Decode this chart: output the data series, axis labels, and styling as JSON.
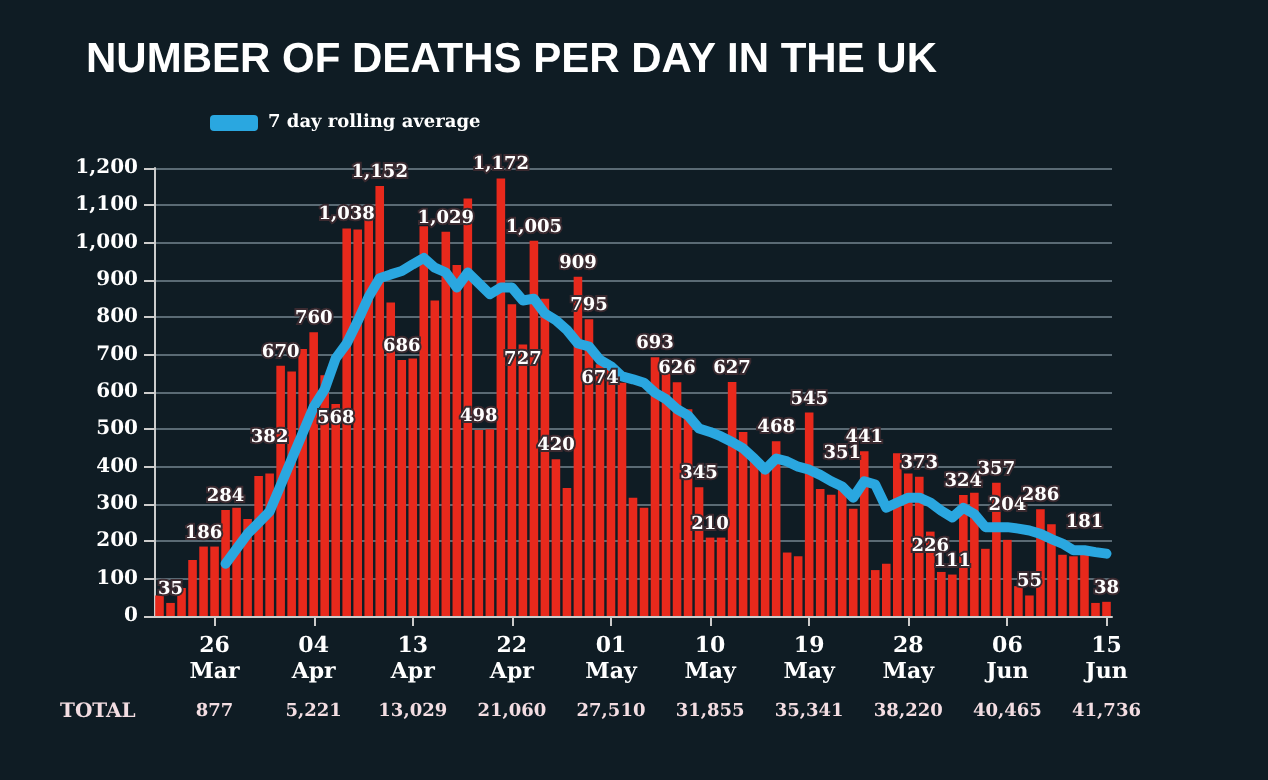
{
  "chart_data": {
    "type": "bar",
    "title": "NUMBER OF DEATHS PER DAY IN THE UK",
    "categories": [
      null,
      null,
      null,
      null,
      null,
      "26 Mar",
      null,
      null,
      null,
      null,
      null,
      null,
      null,
      null,
      "04 Apr",
      null,
      null,
      null,
      null,
      null,
      null,
      null,
      null,
      "13 Apr",
      null,
      null,
      null,
      null,
      null,
      null,
      null,
      null,
      "22 Apr",
      null,
      null,
      null,
      null,
      null,
      null,
      null,
      null,
      "01 May",
      null,
      null,
      null,
      null,
      null,
      null,
      null,
      null,
      "10 May",
      null,
      null,
      null,
      null,
      null,
      null,
      null,
      null,
      "19 May",
      null,
      null,
      null,
      null,
      null,
      null,
      null,
      null,
      "28 May",
      null,
      null,
      null,
      null,
      null,
      null,
      null,
      null,
      "06 Jun",
      null,
      null,
      null,
      null,
      null,
      null,
      null,
      null,
      "15 Jun"
    ],
    "series": [
      {
        "color": "#e8291c",
        "values": [
          55,
          35,
          75,
          150,
          186,
          186,
          284,
          290,
          260,
          375,
          382,
          670,
          655,
          715,
          760,
          645,
          568,
          1038,
          1035,
          1070,
          1152,
          840,
          686,
          690,
          1044,
          845,
          1029,
          940,
          1118,
          498,
          500,
          1172,
          835,
          727,
          1005,
          850,
          420,
          343,
          909,
          795,
          674,
          660,
          625,
          317,
          290,
          693,
          650,
          626,
          554,
          345,
          210,
          210,
          627,
          493,
          428,
          387,
          468,
          170,
          160,
          545,
          340,
          325,
          351,
          287,
          441,
          123,
          140,
          436,
          382,
          373,
          226,
          118,
          111,
          324,
          330,
          180,
          357,
          204,
          80,
          55,
          286,
          246,
          164,
          160,
          181,
          35,
          38
        ],
        "value_labels": [
          null,
          "35",
          null,
          null,
          "186",
          null,
          "284",
          null,
          null,
          null,
          "382",
          "670",
          null,
          null,
          "760",
          null,
          "568",
          "1,038",
          null,
          null,
          "1,152",
          null,
          "686",
          null,
          null,
          null,
          "1,029",
          null,
          null,
          "498",
          null,
          "1,172",
          null,
          "727",
          "1,005",
          null,
          "420",
          null,
          "909",
          "795",
          "674",
          null,
          null,
          null,
          null,
          "693",
          null,
          "626",
          null,
          "345",
          "210",
          null,
          "627",
          null,
          null,
          null,
          "468",
          null,
          null,
          "545",
          null,
          null,
          "351",
          null,
          "441",
          null,
          null,
          null,
          null,
          "373",
          "226",
          null,
          "111",
          "324",
          null,
          null,
          "357",
          "204",
          null,
          "55",
          "286",
          null,
          null,
          null,
          "181",
          null,
          "38"
        ]
      },
      {
        "type": "line",
        "name": "7 day rolling average",
        "color": "#2aa7e0",
        "values": [
          null,
          null,
          null,
          null,
          null,
          null,
          140,
          180,
          220,
          250,
          280,
          350,
          420,
          490,
          560,
          607,
          690,
          730,
          790,
          855,
          905,
          915,
          924,
          942,
          959,
          933,
          920,
          880,
          920,
          891,
          862,
          880,
          880,
          845,
          850,
          810,
          792,
          766,
          730,
          722,
          686,
          669,
          642,
          634,
          625,
          598,
          581,
          554,
          537,
          502,
          493,
          481,
          466,
          449,
          422,
          392,
          422,
          414,
          400,
          392,
          378,
          361,
          347,
          317,
          361,
          352,
          290,
          304,
          317,
          317,
          304,
          282,
          264,
          290,
          273,
          238,
          238,
          238,
          234,
          229,
          220,
          206,
          194,
          176,
          176,
          171,
          167
        ]
      }
    ],
    "ylim": [
      0,
      1200
    ],
    "yticks": [
      0,
      100,
      200,
      300,
      400,
      500,
      600,
      700,
      800,
      900,
      {
        "value": 1000,
        "label": "1,000"
      },
      {
        "value": 1100,
        "label": "1,100"
      },
      {
        "value": 1200,
        "label": "1,200"
      }
    ],
    "grid": "y",
    "legend": "top left",
    "marker": "none",
    "annotations": [
      "TOTAL",
      "877",
      "5,221",
      "13,029",
      "21,060",
      "27,510",
      "31,855",
      "35,341",
      "38,220",
      "40,465",
      "41,736"
    ]
  }
}
